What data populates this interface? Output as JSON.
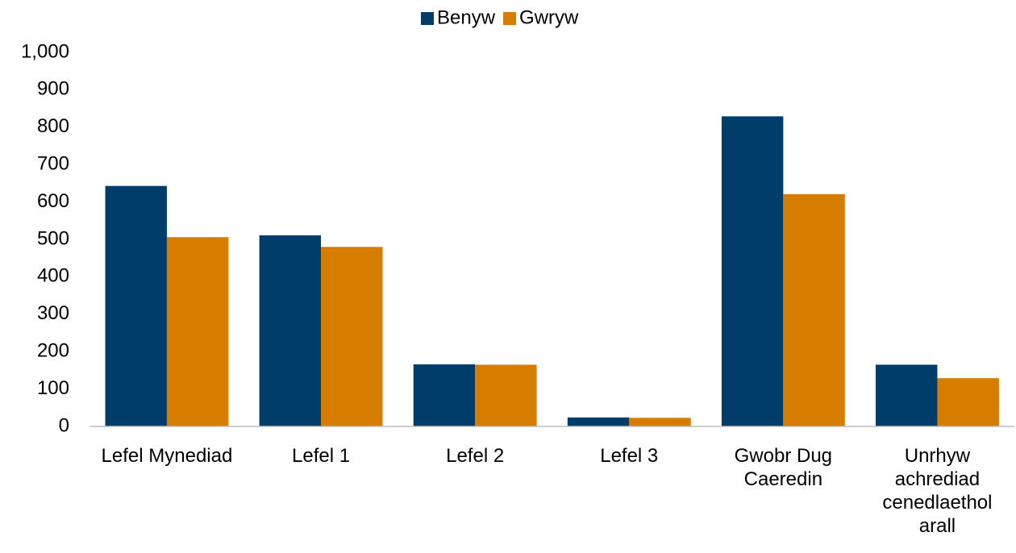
{
  "chart_data": {
    "type": "bar",
    "categories": [
      "Lefel Mynediad",
      "Lefel 1",
      "Lefel 2",
      "Lefel 3",
      "Gwobr Dug Caeredin",
      "Unrhyw achrediad cenedlaethol arall"
    ],
    "series": [
      {
        "name": "Benyw",
        "color": "#003d6b",
        "values": [
          643,
          511,
          166,
          24,
          829,
          165
        ]
      },
      {
        "name": "Gwryw",
        "color": "#d67d00",
        "values": [
          506,
          480,
          165,
          23,
          621,
          129
        ]
      }
    ],
    "ylim": [
      0,
      1000
    ],
    "yticks": [
      0,
      100,
      200,
      300,
      400,
      500,
      600,
      700,
      800,
      900,
      {
        "value": 1000,
        "label": "1,000"
      }
    ],
    "grid": false,
    "legend": "top"
  }
}
